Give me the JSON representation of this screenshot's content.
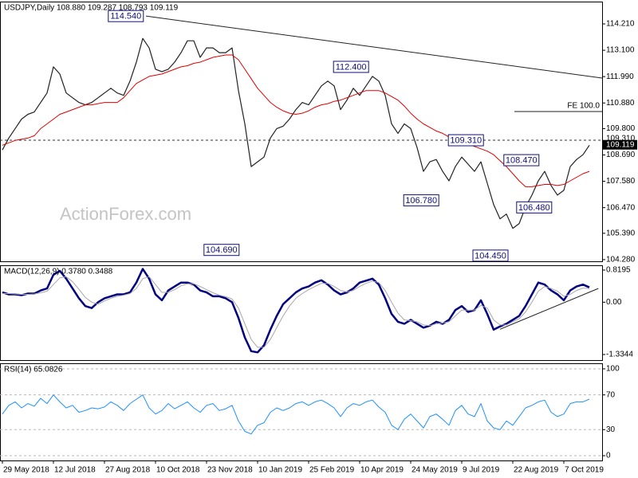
{
  "chart_data": [
    {
      "type": "line",
      "title": "USDJPY,Daily  108.880 109.287 108.793 109.119",
      "watermark": "ActionForex.com",
      "ylim": [
        104.21,
        115.15
      ],
      "yticks": [
        {
          "value": 114.21,
          "label": "114.210"
        },
        {
          "value": 113.1,
          "label": "113.100"
        },
        {
          "value": 111.99,
          "label": "111.990"
        },
        {
          "value": 110.88,
          "label": "110.880"
        },
        {
          "value": 109.8,
          "label": "109.800"
        },
        {
          "value": 108.69,
          "label": "108.690"
        },
        {
          "value": 107.58,
          "label": "107.580"
        },
        {
          "value": 106.47,
          "label": "106.470"
        },
        {
          "value": 105.39,
          "label": "105.390"
        },
        {
          "value": 104.28,
          "label": "104.280"
        }
      ],
      "series": [
        {
          "name": "Close",
          "color": "#222222",
          "width": 1.2,
          "values": [
            108.9,
            109.4,
            109.8,
            110.2,
            110.4,
            110.5,
            110.9,
            111.3,
            112.4,
            112.1,
            111.3,
            111.1,
            110.9,
            110.8,
            110.9,
            111.1,
            111.3,
            111.5,
            111.3,
            111.2,
            111.8,
            112.6,
            113.6,
            113.2,
            112.3,
            112.2,
            112.3,
            112.6,
            113.0,
            113.5,
            113.5,
            112.8,
            113.2,
            113.2,
            113.0,
            113.0,
            113.2,
            111.4,
            110.0,
            108.2,
            108.4,
            108.6,
            109.4,
            109.8,
            109.9,
            110.2,
            110.6,
            110.9,
            110.8,
            111.2,
            111.6,
            111.8,
            111.6,
            110.6,
            111.0,
            111.5,
            111.2,
            111.6,
            112.0,
            111.8,
            111.2,
            110.0,
            109.6,
            110.0,
            109.8,
            109.0,
            108.0,
            108.4,
            108.5,
            108.0,
            107.6,
            108.2,
            108.6,
            108.3,
            108.0,
            108.4,
            107.5,
            106.6,
            106.0,
            106.2,
            105.6,
            105.8,
            106.5,
            107.0,
            107.6,
            108.0,
            107.4,
            107.0,
            107.2,
            108.2,
            108.5,
            108.7,
            109.1
          ]
        },
        {
          "name": "MA",
          "color": "#e00000",
          "width": 1,
          "values": [
            109.1,
            109.2,
            109.3,
            109.35,
            109.4,
            109.5,
            109.8,
            110.0,
            110.2,
            110.4,
            110.5,
            110.6,
            110.7,
            110.8,
            110.8,
            110.85,
            110.9,
            110.9,
            110.9,
            111.1,
            111.4,
            111.7,
            111.85,
            112.0,
            112.05,
            112.1,
            112.2,
            112.3,
            112.4,
            112.45,
            112.55,
            112.6,
            112.7,
            112.8,
            112.85,
            112.9,
            112.9,
            112.7,
            112.3,
            111.9,
            111.5,
            111.2,
            110.9,
            110.7,
            110.55,
            110.45,
            110.4,
            110.45,
            110.55,
            110.7,
            110.8,
            110.85,
            110.95,
            111.0,
            111.1,
            111.2,
            111.3,
            111.4,
            111.4,
            111.4,
            111.3,
            111.15,
            111.0,
            110.75,
            110.45,
            110.2,
            110.0,
            109.85,
            109.7,
            109.6,
            109.45,
            109.35,
            109.25,
            109.15,
            109.05,
            108.95,
            108.85,
            108.7,
            108.45,
            108.2,
            107.9,
            107.6,
            107.35,
            107.35,
            107.4,
            107.45,
            107.45,
            107.4,
            107.45,
            107.6,
            107.75,
            107.9,
            108.0
          ]
        }
      ],
      "annotations": [
        {
          "label": "114.540",
          "value": 114.54,
          "at": 22.1
        },
        {
          "label": "112.400",
          "value": 112.4,
          "at": 57.4
        },
        {
          "label": "109.310",
          "value": 109.31,
          "at": 75.4
        },
        {
          "label": "108.470",
          "value": 108.47,
          "at": 84.1
        },
        {
          "label": "106.780",
          "value": 106.78,
          "at": 68.4
        },
        {
          "label": "106.480",
          "value": 106.48,
          "at": 86.1
        },
        {
          "label": "104.690",
          "value": 104.69,
          "at": 37.1
        },
        {
          "label": "104.450",
          "value": 104.45,
          "at": 79.25
        }
      ],
      "trendlines": [
        {
          "from": [
            22.5,
            114.54
          ],
          "to": [
            94,
            111.93
          ]
        },
        {
          "from": [
            80.25,
            110.52
          ],
          "to": [
            94,
            110.52
          ],
          "label": "FE 100.0"
        }
      ],
      "hlines": [
        {
          "value": 109.31,
          "label": "109.310"
        }
      ],
      "last": {
        "value": 109.119,
        "label": "109.119"
      }
    },
    {
      "type": "line",
      "title": "MACD(12,26,9) 0.3780 0.3488",
      "ylim": [
        -1.477,
        0.9415
      ],
      "yticks": [
        0.8195,
        {
          "value": 0,
          "label": "0.00"
        },
        -1.3344
      ],
      "series": [
        {
          "name": "MACD",
          "color": "#000080",
          "width": 2.5,
          "values": [
            0.25,
            0.2,
            0.2,
            0.18,
            0.22,
            0.22,
            0.3,
            0.35,
            0.7,
            0.8,
            0.6,
            0.35,
            0.1,
            -0.1,
            -0.15,
            0.0,
            0.1,
            0.15,
            0.2,
            0.2,
            0.25,
            0.5,
            0.85,
            0.6,
            0.2,
            0.05,
            0.3,
            0.4,
            0.5,
            0.5,
            0.45,
            0.3,
            0.25,
            0.15,
            0.15,
            0.1,
            0.0,
            -0.4,
            -0.9,
            -1.25,
            -1.28,
            -1.1,
            -0.7,
            -0.35,
            -0.05,
            0.1,
            0.25,
            0.35,
            0.4,
            0.5,
            0.56,
            0.45,
            0.3,
            0.2,
            0.25,
            0.35,
            0.5,
            0.55,
            0.6,
            0.45,
            0.1,
            -0.3,
            -0.5,
            -0.55,
            -0.45,
            -0.55,
            -0.65,
            -0.6,
            -0.5,
            -0.55,
            -0.45,
            -0.2,
            -0.1,
            -0.25,
            -0.2,
            0.05,
            -0.3,
            -0.7,
            -0.62,
            -0.55,
            -0.45,
            -0.35,
            -0.1,
            0.2,
            0.5,
            0.45,
            0.3,
            0.2,
            0.05,
            0.3,
            0.4,
            0.45,
            0.378
          ]
        },
        {
          "name": "Signal",
          "color": "#a8a8a8",
          "width": 1,
          "values": [
            0.22,
            0.22,
            0.21,
            0.2,
            0.2,
            0.21,
            0.24,
            0.28,
            0.45,
            0.62,
            0.65,
            0.52,
            0.33,
            0.12,
            0.0,
            -0.05,
            0.03,
            0.1,
            0.15,
            0.18,
            0.22,
            0.35,
            0.6,
            0.65,
            0.45,
            0.25,
            0.25,
            0.32,
            0.42,
            0.47,
            0.47,
            0.4,
            0.32,
            0.24,
            0.18,
            0.14,
            0.08,
            -0.15,
            -0.55,
            -0.95,
            -1.15,
            -1.15,
            -0.95,
            -0.65,
            -0.35,
            -0.1,
            0.1,
            0.22,
            0.32,
            0.4,
            0.48,
            0.48,
            0.4,
            0.3,
            0.26,
            0.3,
            0.4,
            0.48,
            0.54,
            0.5,
            0.3,
            0.0,
            -0.28,
            -0.45,
            -0.47,
            -0.5,
            -0.58,
            -0.6,
            -0.55,
            -0.53,
            -0.5,
            -0.35,
            -0.2,
            -0.2,
            -0.2,
            -0.08,
            -0.15,
            -0.45,
            -0.58,
            -0.58,
            -0.5,
            -0.42,
            -0.25,
            0.0,
            0.28,
            0.4,
            0.35,
            0.28,
            0.15,
            0.2,
            0.3,
            0.36,
            0.3488
          ]
        }
      ],
      "trendlines": [
        {
          "from": [
            78,
            -0.69
          ],
          "to": [
            93.4,
            0.35
          ]
        }
      ]
    },
    {
      "type": "line",
      "title": "RSI(14) 65.0826",
      "ylim": [
        -5.5,
        106.4
      ],
      "yticks": [
        100,
        70,
        30,
        0
      ],
      "grid": true,
      "categories": [
        "29 May 2018",
        null,
        null,
        null,
        null,
        null,
        null,
        null,
        "12 Jul 2018",
        null,
        null,
        null,
        null,
        null,
        null,
        null,
        "27 Aug 2018",
        null,
        null,
        null,
        null,
        null,
        null,
        null,
        "10 Oct 2018",
        null,
        null,
        null,
        null,
        null,
        null,
        null,
        "23 Nov 2018",
        null,
        null,
        null,
        null,
        null,
        null,
        null,
        "10 Jan 2019",
        null,
        null,
        null,
        null,
        null,
        null,
        null,
        "25 Feb 2019",
        null,
        null,
        null,
        null,
        null,
        null,
        null,
        "10 Apr 2019",
        null,
        null,
        null,
        null,
        null,
        null,
        null,
        "24 May 2019",
        null,
        null,
        null,
        null,
        null,
        null,
        null,
        "9 Jul 2019",
        null,
        null,
        null,
        null,
        null,
        null,
        null,
        "22 Aug 2019",
        null,
        null,
        null,
        null,
        null,
        null,
        null,
        "7 Oct 2019",
        null,
        null,
        null,
        null
      ],
      "series": [
        {
          "name": "RSI",
          "color": "#1e90ff",
          "width": 1,
          "values": [
            48,
            58,
            62,
            55,
            60,
            57,
            66,
            60,
            70,
            62,
            55,
            58,
            50,
            52,
            55,
            54,
            56,
            62,
            58,
            52,
            60,
            65,
            70,
            55,
            48,
            52,
            60,
            54,
            58,
            62,
            55,
            50,
            58,
            60,
            52,
            54,
            58,
            40,
            28,
            25,
            35,
            38,
            50,
            55,
            52,
            55,
            60,
            62,
            58,
            62,
            64,
            60,
            55,
            45,
            55,
            60,
            58,
            62,
            64,
            56,
            50,
            35,
            30,
            42,
            48,
            40,
            32,
            45,
            48,
            42,
            35,
            52,
            58,
            48,
            45,
            60,
            40,
            32,
            30,
            40,
            35,
            45,
            55,
            58,
            62,
            64,
            50,
            45,
            48,
            60,
            62,
            62,
            65.0826
          ]
        }
      ]
    }
  ]
}
